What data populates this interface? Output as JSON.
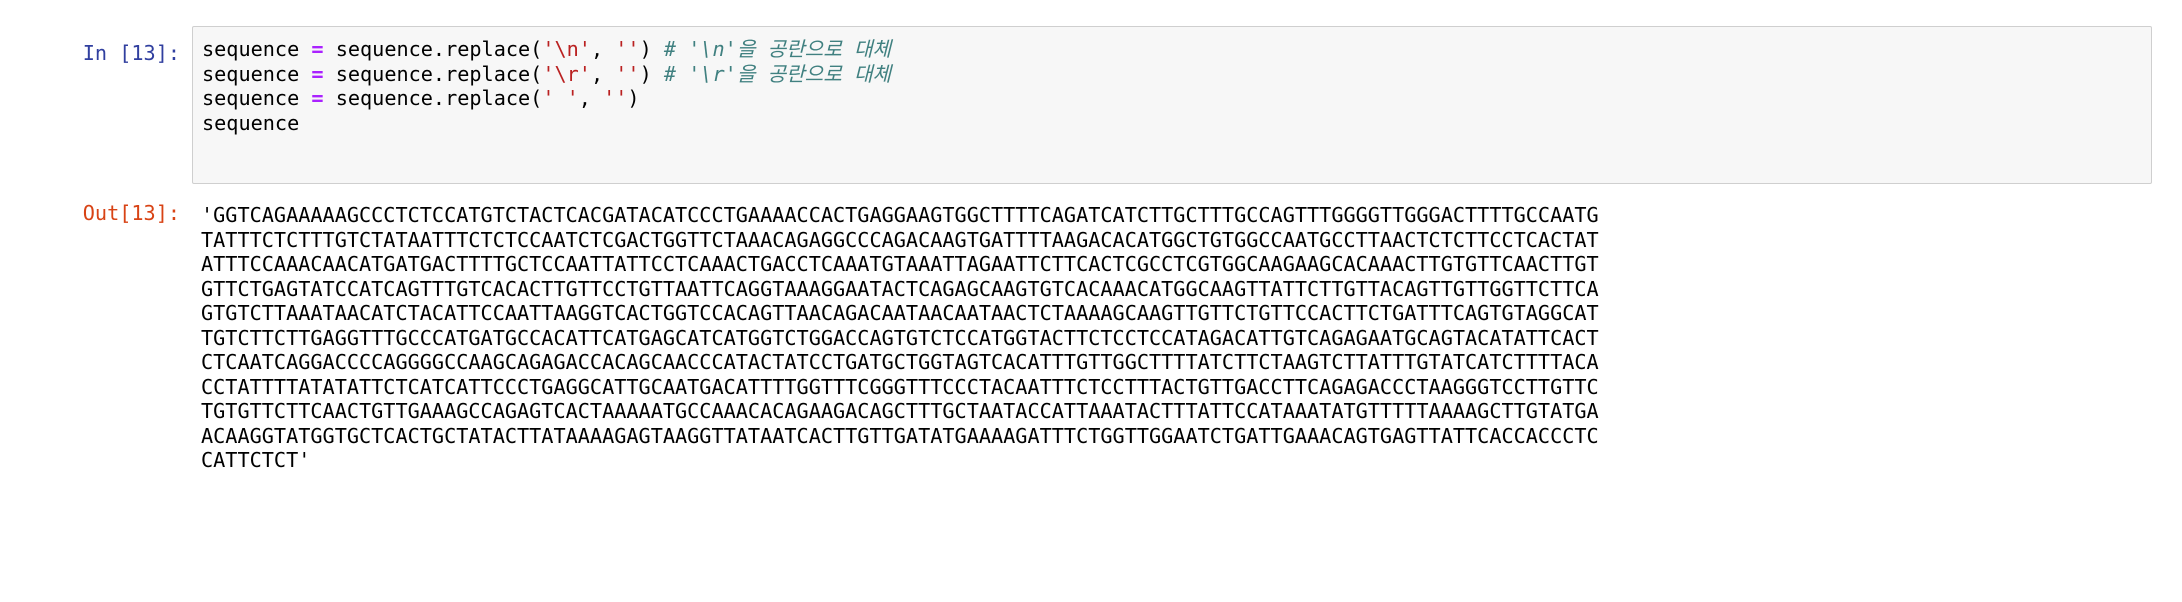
{
  "cells": [
    {
      "prompt": "In [13]:",
      "code_lines": [
        [
          {
            "text": "sequence ",
            "color": "#000000"
          },
          {
            "text": "=",
            "color": "#aa22ff"
          },
          {
            "text": " sequence.replace(",
            "color": "#000000"
          },
          {
            "text": "'\\n'",
            "color": "#ba2121"
          },
          {
            "text": ", ",
            "color": "#000000"
          },
          {
            "text": "''",
            "color": "#ba2121"
          },
          {
            "text": ") ",
            "color": "#000000"
          },
          {
            "text": "# '\\n'을 공란으로 대체",
            "color": "#408080"
          }
        ],
        [
          {
            "text": "sequence ",
            "color": "#000000"
          },
          {
            "text": "=",
            "color": "#aa22ff"
          },
          {
            "text": " sequence.replace(",
            "color": "#000000"
          },
          {
            "text": "'\\r'",
            "color": "#ba2121"
          },
          {
            "text": ", ",
            "color": "#000000"
          },
          {
            "text": "''",
            "color": "#ba2121"
          },
          {
            "text": ") ",
            "color": "#000000"
          },
          {
            "text": "# '\\r'을 공란으로 대체",
            "color": "#408080"
          }
        ],
        [
          {
            "text": "sequence ",
            "color": "#000000"
          },
          {
            "text": "=",
            "color": "#aa22ff"
          },
          {
            "text": " sequence.replace(",
            "color": "#000000"
          },
          {
            "text": "' '",
            "color": "#ba2121"
          },
          {
            "text": ", ",
            "color": "#000000"
          },
          {
            "text": "''",
            "color": "#ba2121"
          },
          {
            "text": ")",
            "color": "#000000"
          }
        ],
        [
          {
            "text": "sequence",
            "color": "#000000"
          }
        ]
      ],
      "output_prompt": "Out[13]:",
      "output_lines": [
        "'GGTCAGAAAAAGCCCTCTCCATGTCTACTCACGATACATCCCTGAAAACCACTGAGGAAGTGGCTTTTCAGATCATCTTGCTTTGCCAGTTTGGGGTTGGGACTTTTGCCAATG",
        "TATTTCTCTTTGTCTATAATTTCTCTCCAATCTCGACTGGTTCTAAACAGAGGCCCAGACAAGTGATTTTAAGACACATGGCTGTGGCCAATGCCTTAACTCTCTTCCTCACTAT",
        "ATTTCCAAACAACATGATGACTTTTGCTCCAATTATTCCTCAAACTGACCTCAAATGTAAATTAGAATTCTTCACTCGCCTCGTGGCAAGAAGCACAAACTTGTGTTCAACTTGT",
        "GTTCTGAGTATCCATCAGTTTGTCACACTTGTTCCTGTTAATTCAGGTAAAGGAATACTCAGAGCAAGTGTCACAAACATGGCAAGTTATTCTTGTTACAGTTGTTGGTTCTTCA",
        "GTGTCTTAAATAACATCTACATTCCAATTAAGGTCACTGGTCCACAGTTAACAGACAATAACAATAACTCTAAAAGCAAGTTGTTCTGTTCCACTTCTGATTTCAGTGTAGGCAT",
        "TGTCTTCTTGAGGTTTGCCCATGATGCCACATTCATGAGCATCATGGTCTGGACCAGTGTCTCCATGGTACTTCTCCTCCATAGACATTGTCAGAGAATGCAGTACATATTCACT",
        "CTCAATCAGGACCCCAGGGGCCAAGCAGAGACCACAGCAACCCATACTATCCTGATGCTGGTAGTCACATTTGTTGGCTTTTATCTTCTAAGTCTTATTTGTATCATCTTTTACA",
        "CCTATTTTATATATTCTCATCATTCCCTGAGGCATTGCAATGACATTTTGGTTTCGGGTTTCCCTACAATTTCTCCTTTACTGTTGACCTTCAGAGACCCTAAGGGTCCTTGTTC",
        "TGTGTTCTTCAACTGTTGAAAGCCAGAGTCACTAAAAATGCCAAACACAGAAGACAGCTTTGCTAATACCATTAAATACTTTATTCCATAAATATGTTTTTAAAAGCTTGTATGA",
        "ACAAGGTATGGTGCTCACTGCTATACTTATAAAAGAGTAAGGTTATAATCACTTGTTGATATGAAAAGATTTCTGGTTGGAATCTGATTGAAACAGTGAGTTATTCACCACCCTC",
        "CATTCTCT'"
      ]
    }
  ]
}
